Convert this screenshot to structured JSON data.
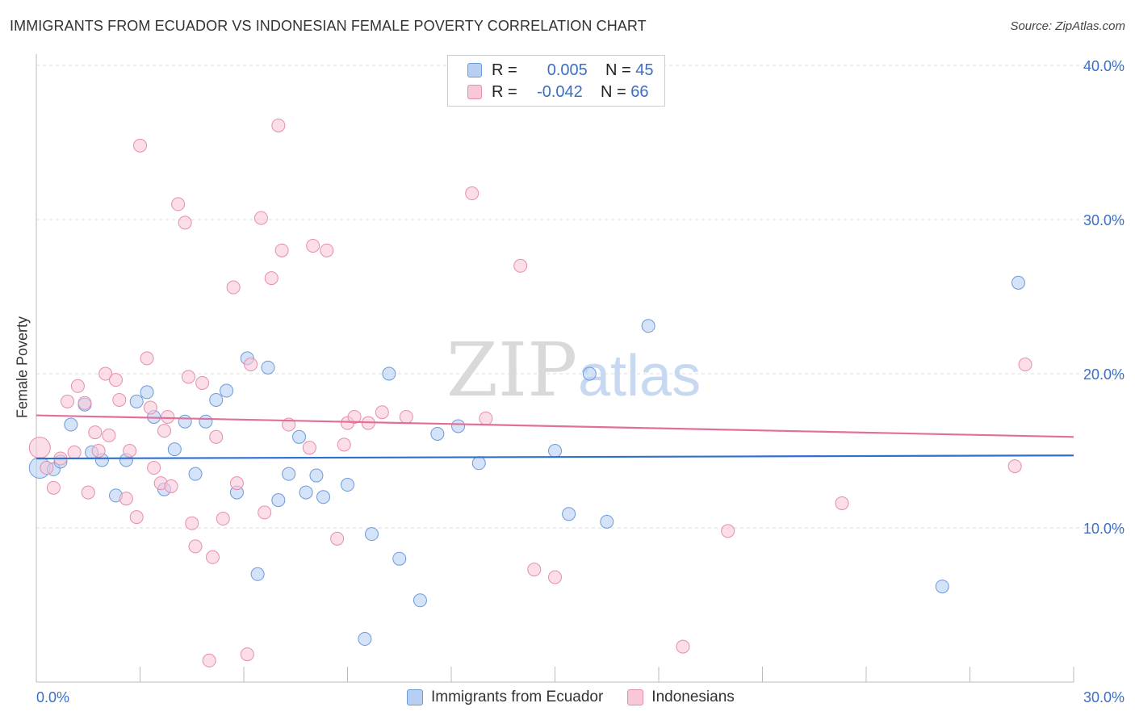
{
  "title": "IMMIGRANTS FROM ECUADOR VS INDONESIAN FEMALE POVERTY CORRELATION CHART",
  "source": "Source: ZipAtlas.com",
  "watermark": {
    "zip": "ZIP",
    "atlas": "atlas"
  },
  "colors": {
    "blue_fill": "#b7d0f2",
    "blue_stroke": "#6d9ad8",
    "blue_line": "#2f6fd0",
    "pink_fill": "#f9c8d8",
    "pink_stroke": "#e58eaa",
    "pink_line": "#e0709a",
    "axis_label": "#3a6fc4",
    "grid": "#dddddd"
  },
  "legend": {
    "rows": [
      {
        "r_label": "R =",
        "r_value": "0.005",
        "n_label": "N =",
        "n_value": "45",
        "color": "blue"
      },
      {
        "r_label": "R =",
        "r_value": "-0.042",
        "n_label": "N =",
        "n_value": "66",
        "color": "pink"
      }
    ]
  },
  "bottom_legend": [
    "Immigrants from Ecuador",
    "Indonesians"
  ],
  "chart_data": {
    "type": "scatter",
    "xlabel": "",
    "ylabel": "Female Poverty",
    "xlim": [
      0,
      30
    ],
    "ylim": [
      0,
      40
    ],
    "x_tick_labels": [
      "0.0%",
      "30.0%"
    ],
    "y_tick_labels": [
      "10.0%",
      "20.0%",
      "30.0%",
      "40.0%"
    ],
    "y_ticks": [
      10,
      20,
      30,
      40
    ],
    "grid": true,
    "series": [
      {
        "name": "Immigrants from Ecuador",
        "color": "blue",
        "trend": [
          [
            0,
            14.5
          ],
          [
            30,
            14.7
          ]
        ],
        "points": [
          [
            0.1,
            13.9
          ],
          [
            0.5,
            13.8
          ],
          [
            0.7,
            14.3
          ],
          [
            1.0,
            16.7
          ],
          [
            1.4,
            18.0
          ],
          [
            1.6,
            14.9
          ],
          [
            1.9,
            14.4
          ],
          [
            2.3,
            12.1
          ],
          [
            2.6,
            14.4
          ],
          [
            2.9,
            18.2
          ],
          [
            3.2,
            18.8
          ],
          [
            3.4,
            17.2
          ],
          [
            3.7,
            12.5
          ],
          [
            4.0,
            15.1
          ],
          [
            4.3,
            16.9
          ],
          [
            4.6,
            13.5
          ],
          [
            4.9,
            16.9
          ],
          [
            5.2,
            18.3
          ],
          [
            5.5,
            18.9
          ],
          [
            5.8,
            12.3
          ],
          [
            6.1,
            21.0
          ],
          [
            6.4,
            7.0
          ],
          [
            6.7,
            20.4
          ],
          [
            7.0,
            11.8
          ],
          [
            7.3,
            13.5
          ],
          [
            7.6,
            15.9
          ],
          [
            7.8,
            12.3
          ],
          [
            8.1,
            13.4
          ],
          [
            8.3,
            12.0
          ],
          [
            9.0,
            12.8
          ],
          [
            9.5,
            2.8
          ],
          [
            9.7,
            9.6
          ],
          [
            10.2,
            20.0
          ],
          [
            10.5,
            8.0
          ],
          [
            11.1,
            5.3
          ],
          [
            11.6,
            16.1
          ],
          [
            12.2,
            16.6
          ],
          [
            12.8,
            14.2
          ],
          [
            15.0,
            15.0
          ],
          [
            15.4,
            10.9
          ],
          [
            16.0,
            20.0
          ],
          [
            16.5,
            10.4
          ],
          [
            17.7,
            23.1
          ],
          [
            26.2,
            6.2
          ],
          [
            28.4,
            25.9
          ]
        ]
      },
      {
        "name": "Indonesians",
        "color": "pink",
        "trend": [
          [
            0,
            17.3
          ],
          [
            30,
            15.9
          ]
        ],
        "points": [
          [
            0.1,
            15.2
          ],
          [
            0.3,
            13.9
          ],
          [
            0.5,
            12.6
          ],
          [
            0.7,
            14.5
          ],
          [
            0.9,
            18.2
          ],
          [
            1.1,
            14.9
          ],
          [
            1.2,
            19.2
          ],
          [
            1.4,
            18.1
          ],
          [
            1.5,
            12.3
          ],
          [
            1.7,
            16.2
          ],
          [
            1.8,
            15.0
          ],
          [
            2.0,
            20.0
          ],
          [
            2.1,
            16.0
          ],
          [
            2.3,
            19.6
          ],
          [
            2.4,
            18.3
          ],
          [
            2.6,
            11.9
          ],
          [
            2.7,
            15.0
          ],
          [
            2.9,
            10.7
          ],
          [
            3.0,
            34.8
          ],
          [
            3.2,
            21.0
          ],
          [
            3.3,
            17.8
          ],
          [
            3.4,
            13.9
          ],
          [
            3.6,
            12.9
          ],
          [
            3.7,
            16.3
          ],
          [
            3.8,
            17.2
          ],
          [
            3.9,
            12.7
          ],
          [
            4.1,
            31.0
          ],
          [
            4.3,
            29.8
          ],
          [
            4.4,
            19.8
          ],
          [
            4.5,
            10.3
          ],
          [
            4.6,
            8.8
          ],
          [
            4.8,
            19.4
          ],
          [
            5.0,
            1.4
          ],
          [
            5.1,
            8.1
          ],
          [
            5.2,
            15.9
          ],
          [
            5.4,
            10.6
          ],
          [
            5.7,
            25.6
          ],
          [
            5.8,
            12.9
          ],
          [
            6.1,
            1.8
          ],
          [
            6.2,
            20.6
          ],
          [
            6.5,
            30.1
          ],
          [
            6.6,
            11.0
          ],
          [
            6.8,
            26.2
          ],
          [
            7.0,
            36.1
          ],
          [
            7.1,
            28.0
          ],
          [
            7.3,
            16.7
          ],
          [
            7.9,
            15.2
          ],
          [
            8.0,
            28.3
          ],
          [
            8.4,
            28.0
          ],
          [
            8.7,
            9.3
          ],
          [
            8.9,
            15.4
          ],
          [
            9.0,
            16.8
          ],
          [
            9.2,
            17.2
          ],
          [
            9.6,
            16.8
          ],
          [
            10.0,
            17.5
          ],
          [
            10.7,
            17.2
          ],
          [
            12.6,
            31.7
          ],
          [
            13.0,
            17.1
          ],
          [
            14.0,
            27.0
          ],
          [
            14.4,
            7.3
          ],
          [
            15.0,
            6.8
          ],
          [
            18.7,
            2.3
          ],
          [
            20.0,
            9.8
          ],
          [
            23.3,
            11.6
          ],
          [
            28.3,
            14.0
          ],
          [
            28.6,
            20.6
          ]
        ]
      }
    ]
  }
}
